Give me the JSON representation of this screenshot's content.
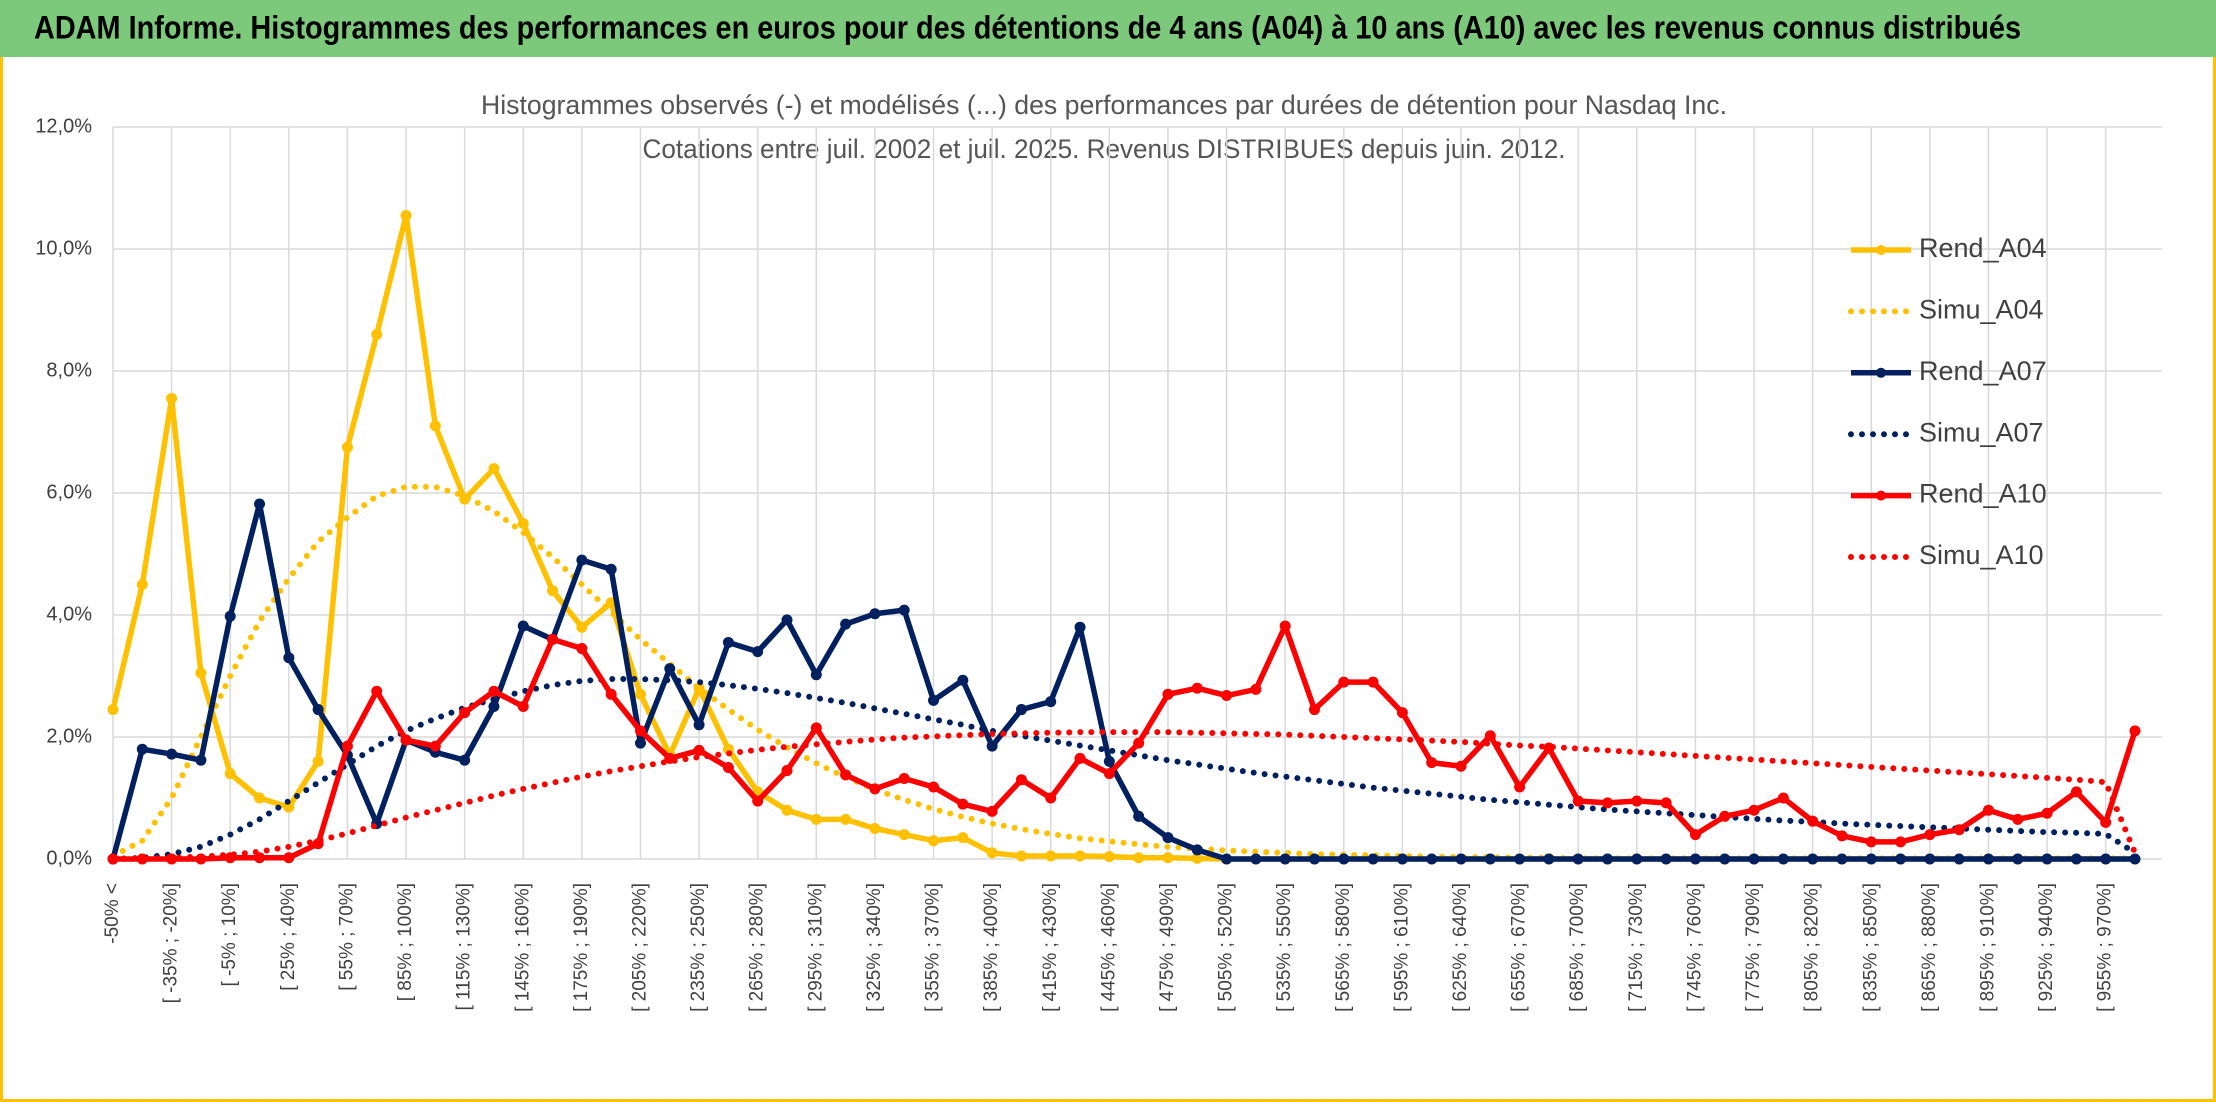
{
  "chart_data": {
    "type": "line",
    "header": "ADAM Informe. Histogrammes des performances en euros pour des détentions de 4 ans (A04) à 10 ans (A10) avec les revenus connus distribués",
    "title": "Histogrammes observés (-) et modélisés (...) des performances par durées de détention pour Nasdaq Inc.",
    "subtitle": "Cotations entre juil. 2002 et juil. 2025. Revenus DISTRIBUES depuis juin. 2012.",
    "categories": [
      "-50% <",
      null,
      "[ -35% ; -20%]",
      null,
      "[ -5% ; 10%]",
      null,
      "[ 25% ; 40%]",
      null,
      "[ 55% ; 70%]",
      null,
      "[ 85% ; 100%]",
      null,
      "[ 115% ; 130%]",
      null,
      "[ 145% ; 160%]",
      null,
      "[ 175% ; 190%]",
      null,
      "[ 205% ; 220%]",
      null,
      "[ 235% ; 250%]",
      null,
      "[ 265% ; 280%]",
      null,
      "[ 295% ; 310%]",
      null,
      "[ 325% ; 340%]",
      null,
      "[ 355% ; 370%]",
      null,
      "[ 385% ; 400%]",
      null,
      "[ 415% ; 430%]",
      null,
      "[ 445% ; 460%]",
      null,
      "[ 475% ; 490%]",
      null,
      "[ 505% ; 520%]",
      null,
      "[ 535% ; 550%]",
      null,
      "[ 565% ; 580%]",
      null,
      "[ 595% ; 610%]",
      null,
      "[ 625% ; 640%]",
      null,
      "[ 655% ; 670%]",
      null,
      "[ 685% ; 700%]",
      null,
      "[ 715% ; 730%]",
      null,
      "[ 745% ; 760%]",
      null,
      "[ 775% ; 790%]",
      null,
      "[ 805% ; 820%]",
      null,
      "[ 835% ; 850%]",
      null,
      "[ 865% ; 880%]",
      null,
      "[ 895% ; 910%]",
      null,
      "[ 925% ; 940%]",
      null,
      "[ 955% ; 970%]",
      null
    ],
    "series": [
      {
        "name": "Rend_A04",
        "color": "#FFC000",
        "line_style": "solid",
        "markers": true,
        "values": [
          2.45,
          4.5,
          7.55,
          3.05,
          1.4,
          1.0,
          0.85,
          1.6,
          6.75,
          8.6,
          10.55,
          7.1,
          5.9,
          6.4,
          5.5,
          4.4,
          3.8,
          4.2,
          2.7,
          1.7,
          2.8,
          1.8,
          1.1,
          0.8,
          0.65,
          0.65,
          0.5,
          0.4,
          0.3,
          0.35,
          0.1,
          0.05,
          0.05,
          0.05,
          0.04,
          0.02,
          0.02,
          0.01,
          0,
          0,
          0,
          0,
          0,
          0,
          0,
          0,
          0,
          0,
          0,
          0,
          0,
          0,
          0,
          0,
          0,
          0,
          0,
          0,
          0,
          0,
          0,
          0,
          0,
          0,
          0,
          0,
          0,
          0,
          0,
          0
        ]
      },
      {
        "name": "Simu_A04",
        "color": "#FFC000",
        "line_style": "dotted",
        "markers": false,
        "values": [
          0.05,
          0.3,
          1.0,
          2.0,
          3.0,
          3.9,
          4.6,
          5.2,
          5.6,
          5.95,
          6.1,
          6.1,
          5.95,
          5.7,
          5.35,
          4.95,
          4.5,
          4.05,
          3.6,
          3.2,
          2.8,
          2.45,
          2.12,
          1.83,
          1.57,
          1.34,
          1.14,
          0.97,
          0.82,
          0.69,
          0.58,
          0.49,
          0.41,
          0.34,
          0.29,
          0.24,
          0.2,
          0.17,
          0.14,
          0.12,
          0.1,
          0.08,
          0.07,
          0.06,
          0.05,
          0.04,
          0.03,
          0.03,
          0.02,
          0.02,
          0.01,
          0.01,
          0.01,
          0.01,
          0.01,
          0.01,
          0.01,
          0.01,
          0.01,
          0.01,
          0.01,
          0.01,
          0.01,
          0.01,
          0.01,
          0.01,
          0.01,
          0.01,
          0.01,
          0.01
        ]
      },
      {
        "name": "Rend_A07",
        "color": "#002060",
        "line_style": "solid",
        "markers": true,
        "values": [
          0,
          1.8,
          1.72,
          1.62,
          3.98,
          5.82,
          3.3,
          2.45,
          1.7,
          0.58,
          1.95,
          1.75,
          1.62,
          2.5,
          3.82,
          3.6,
          4.9,
          4.75,
          1.9,
          3.12,
          2.2,
          3.55,
          3.4,
          3.92,
          3.02,
          3.85,
          4.02,
          4.08,
          2.6,
          2.93,
          1.85,
          2.45,
          2.58,
          3.8,
          1.6,
          0.7,
          0.35,
          0.15,
          0,
          0,
          0,
          0,
          0,
          0,
          0,
          0,
          0,
          0,
          0,
          0,
          0,
          0,
          0,
          0,
          0,
          0,
          0,
          0,
          0,
          0,
          0,
          0,
          0,
          0,
          0,
          0,
          0,
          0,
          0,
          0
        ]
      },
      {
        "name": "Simu_A07",
        "color": "#002060",
        "line_style": "dotted",
        "markers": false,
        "values": [
          0,
          0.02,
          0.08,
          0.2,
          0.4,
          0.65,
          0.95,
          1.25,
          1.55,
          1.85,
          2.1,
          2.3,
          2.48,
          2.62,
          2.75,
          2.85,
          2.92,
          2.95,
          2.95,
          2.93,
          2.9,
          2.85,
          2.79,
          2.72,
          2.64,
          2.56,
          2.47,
          2.38,
          2.29,
          2.2,
          2.1,
          2.02,
          1.94,
          1.86,
          1.78,
          1.7,
          1.62,
          1.55,
          1.48,
          1.41,
          1.35,
          1.29,
          1.23,
          1.17,
          1.12,
          1.07,
          1.02,
          0.97,
          0.93,
          0.89,
          0.85,
          0.81,
          0.78,
          0.75,
          0.72,
          0.69,
          0.66,
          0.63,
          0.61,
          0.58,
          0.56,
          0.54,
          0.52,
          0.5,
          0.48,
          0.46,
          0.44,
          0.43,
          0.41,
          0.1
        ]
      },
      {
        "name": "Rend_A10",
        "color": "#FF0000",
        "line_style": "solid",
        "markers": true,
        "values": [
          0,
          0,
          0,
          0,
          0.02,
          0.02,
          0.02,
          0.25,
          1.85,
          2.75,
          1.95,
          1.85,
          2.4,
          2.75,
          2.5,
          3.6,
          3.45,
          2.7,
          2.1,
          1.65,
          1.78,
          1.5,
          0.95,
          1.45,
          2.15,
          1.38,
          1.15,
          1.32,
          1.18,
          0.9,
          0.78,
          1.3,
          1.0,
          1.65,
          1.4,
          1.9,
          2.7,
          2.8,
          2.68,
          2.78,
          3.82,
          2.45,
          2.9,
          2.9,
          2.4,
          1.58,
          1.52,
          2.02,
          1.18,
          1.82,
          0.95,
          0.92,
          0.95,
          0.92,
          0.4,
          0.7,
          0.8,
          1.0,
          0.62,
          0.38,
          0.28,
          0.28,
          0.4,
          0.48,
          0.8,
          0.65,
          0.75,
          1.1,
          0.6,
          2.1
        ]
      },
      {
        "name": "Simu_A10",
        "color": "#FF0000",
        "line_style": "dotted",
        "markers": false,
        "values": [
          0,
          0.01,
          0.02,
          0.04,
          0.07,
          0.12,
          0.2,
          0.3,
          0.42,
          0.55,
          0.68,
          0.8,
          0.92,
          1.04,
          1.15,
          1.25,
          1.35,
          1.44,
          1.52,
          1.6,
          1.67,
          1.73,
          1.79,
          1.84,
          1.88,
          1.92,
          1.96,
          1.99,
          2.01,
          2.03,
          2.05,
          2.06,
          2.07,
          2.08,
          2.08,
          2.08,
          2.08,
          2.07,
          2.06,
          2.05,
          2.04,
          2.02,
          2.0,
          1.98,
          1.96,
          1.94,
          1.92,
          1.89,
          1.86,
          1.84,
          1.81,
          1.78,
          1.75,
          1.72,
          1.69,
          1.66,
          1.63,
          1.6,
          1.57,
          1.54,
          1.51,
          1.48,
          1.45,
          1.42,
          1.39,
          1.36,
          1.33,
          1.3,
          1.26,
          0.1
        ]
      }
    ],
    "ylim": [
      0,
      12
    ],
    "yticks": [
      {
        "value": 0,
        "label": "0,0%"
      },
      {
        "value": 2,
        "label": "2,0%"
      },
      {
        "value": 4,
        "label": "4,0%"
      },
      {
        "value": 6,
        "label": "6,0%"
      },
      {
        "value": 8,
        "label": "8,0%"
      },
      {
        "value": 10,
        "label": "10,0%"
      },
      {
        "value": 12,
        "label": "12,0%"
      }
    ],
    "grid": true,
    "legend": "right"
  }
}
